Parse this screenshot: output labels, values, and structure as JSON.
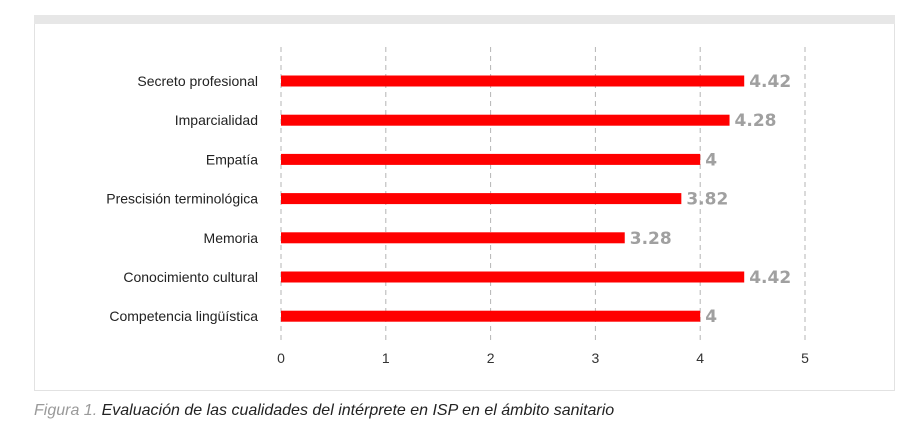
{
  "caption": {
    "prefix": "Figura 1.",
    "text": "Evaluación de las cualidades del intérprete en ISP en el ámbito sanitario"
  },
  "colors": {
    "bar": "#ff0000",
    "value_label": "#a0a0a0",
    "grid": "#b5b5b5"
  },
  "chart_data": {
    "type": "bar",
    "orientation": "horizontal",
    "categories": [
      "Secreto profesional",
      "Imparcialidad",
      "Empatía",
      "Prescisión terminológica",
      "Memoria",
      "Conocimiento cultural",
      "Competencia lingüística"
    ],
    "values": [
      4.42,
      4.28,
      4,
      3.82,
      3.28,
      4.42,
      4
    ],
    "value_labels": [
      "4.42",
      "4.28",
      "4",
      "3.82",
      "3.28",
      "4.42",
      "4"
    ],
    "xlim": [
      0,
      5
    ],
    "xticks": [
      "0",
      "1",
      "2",
      "3",
      "4",
      "5"
    ],
    "grid": "vertical dashed",
    "legend": "none",
    "title": "",
    "xlabel": "",
    "ylabel": ""
  }
}
